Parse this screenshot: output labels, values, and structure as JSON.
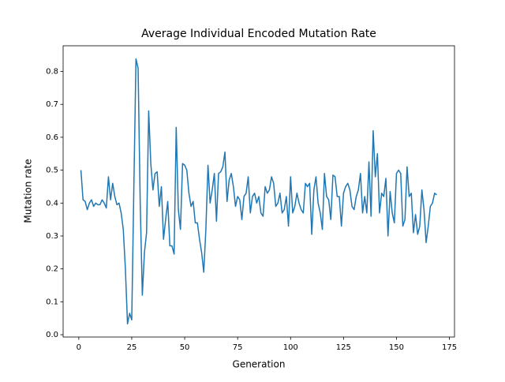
{
  "chart_data": {
    "type": "line",
    "title": "Average Individual Encoded Mutation Rate",
    "x_label": "Generation",
    "y_label": "Mutation rate",
    "x": [
      1,
      2,
      3,
      4,
      5,
      6,
      7,
      8,
      9,
      10,
      11,
      12,
      13,
      14,
      15,
      16,
      17,
      18,
      19,
      20,
      21,
      22,
      23,
      24,
      25,
      26,
      27,
      28,
      29,
      30,
      31,
      32,
      33,
      34,
      35,
      36,
      37,
      38,
      39,
      40,
      41,
      42,
      43,
      44,
      45,
      46,
      47,
      48,
      49,
      50,
      51,
      52,
      53,
      54,
      55,
      56,
      57,
      58,
      59,
      60,
      61,
      62,
      63,
      64,
      65,
      66,
      67,
      68,
      69,
      70,
      71,
      72,
      73,
      74,
      75,
      76,
      77,
      78,
      79,
      80,
      81,
      82,
      83,
      84,
      85,
      86,
      87,
      88,
      89,
      90,
      91,
      92,
      93,
      94,
      95,
      96,
      97,
      98,
      99,
      100,
      101,
      102,
      103,
      104,
      105,
      106,
      107,
      108,
      109,
      110,
      111,
      112,
      113,
      114,
      115,
      116,
      117,
      118,
      119,
      120,
      121,
      122,
      123,
      124,
      125,
      126,
      127,
      128,
      129,
      130,
      131,
      132,
      133,
      134,
      135,
      136,
      137,
      138,
      139,
      140,
      141,
      142,
      143,
      144,
      145,
      146,
      147,
      148,
      149,
      150,
      151,
      152,
      153,
      154,
      155,
      156,
      157,
      158,
      159,
      160,
      161,
      162,
      163,
      164,
      165,
      166,
      167,
      168,
      169
    ],
    "series": [
      {
        "name": "Mutation rate",
        "color": "#1f77b4",
        "values": [
          0.5,
          0.41,
          0.405,
          0.38,
          0.4,
          0.41,
          0.39,
          0.4,
          0.395,
          0.395,
          0.41,
          0.4,
          0.385,
          0.48,
          0.41,
          0.46,
          0.42,
          0.395,
          0.4,
          0.37,
          0.32,
          0.2,
          0.033,
          0.065,
          0.045,
          0.45,
          0.838,
          0.81,
          0.4,
          0.12,
          0.25,
          0.31,
          0.68,
          0.52,
          0.44,
          0.49,
          0.495,
          0.39,
          0.45,
          0.29,
          0.35,
          0.405,
          0.27,
          0.27,
          0.245,
          0.63,
          0.38,
          0.32,
          0.52,
          0.515,
          0.5,
          0.43,
          0.39,
          0.405,
          0.34,
          0.34,
          0.29,
          0.25,
          0.19,
          0.32,
          0.515,
          0.4,
          0.44,
          0.49,
          0.345,
          0.49,
          0.495,
          0.51,
          0.555,
          0.405,
          0.47,
          0.49,
          0.45,
          0.39,
          0.42,
          0.41,
          0.35,
          0.42,
          0.43,
          0.48,
          0.37,
          0.42,
          0.43,
          0.4,
          0.42,
          0.37,
          0.36,
          0.45,
          0.43,
          0.44,
          0.48,
          0.46,
          0.39,
          0.4,
          0.43,
          0.37,
          0.38,
          0.42,
          0.33,
          0.48,
          0.37,
          0.39,
          0.43,
          0.4,
          0.38,
          0.37,
          0.46,
          0.45,
          0.46,
          0.305,
          0.44,
          0.48,
          0.4,
          0.37,
          0.32,
          0.49,
          0.42,
          0.41,
          0.35,
          0.485,
          0.48,
          0.42,
          0.42,
          0.33,
          0.43,
          0.45,
          0.46,
          0.44,
          0.39,
          0.38,
          0.42,
          0.44,
          0.49,
          0.37,
          0.42,
          0.37,
          0.525,
          0.36,
          0.62,
          0.48,
          0.55,
          0.37,
          0.43,
          0.42,
          0.475,
          0.3,
          0.435,
          0.37,
          0.34,
          0.49,
          0.5,
          0.49,
          0.33,
          0.35,
          0.51,
          0.42,
          0.43,
          0.31,
          0.365,
          0.305,
          0.33,
          0.44,
          0.38,
          0.28,
          0.33,
          0.39,
          0.4,
          0.43,
          0.425
        ]
      }
    ],
    "xlim": [
      -7.4,
      177.4
    ],
    "ylim": [
      -0.007,
      0.878
    ],
    "xticks": [
      0,
      25,
      50,
      75,
      100,
      125,
      150,
      175
    ],
    "yticks": [
      {
        "value": 0,
        "label": "0.0"
      },
      0.1,
      0.2,
      0.3,
      0.4,
      0.5,
      0.6,
      0.7,
      0.8
    ]
  }
}
